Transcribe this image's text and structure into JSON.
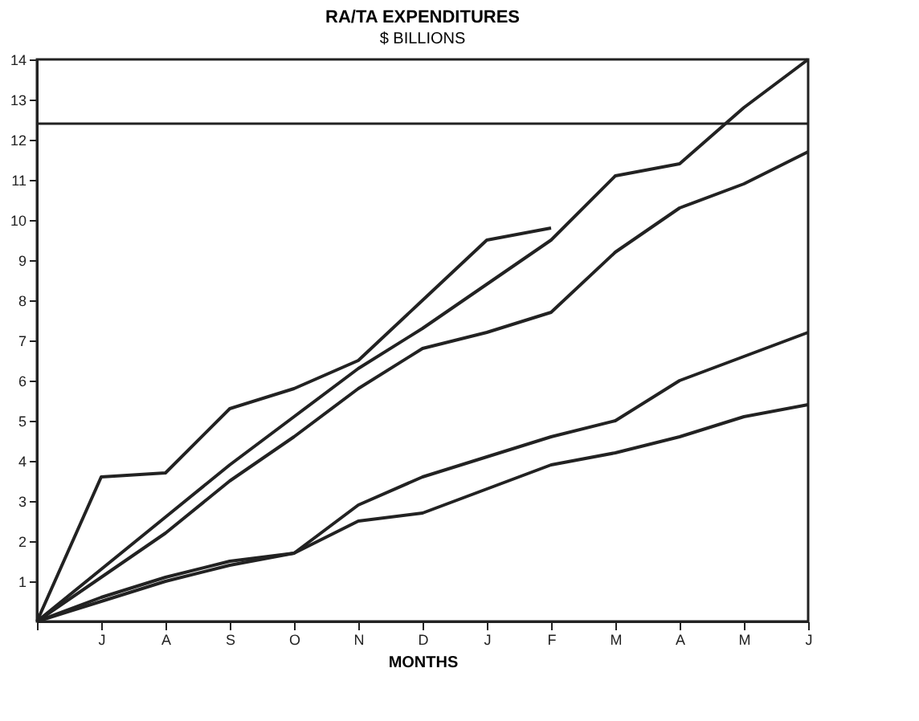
{
  "chart_data": {
    "type": "line",
    "title": "RA/TA EXPENDITURES",
    "ylabel": "$ BILLIONS",
    "xlabel": "MONTHS",
    "categories": [
      null,
      "J",
      "A",
      "S",
      "O",
      "N",
      "D",
      "J",
      "F",
      "M",
      "A",
      "M",
      "J"
    ],
    "ylim": [
      0,
      14
    ],
    "yticks": [
      1,
      2,
      3,
      4,
      5,
      6,
      7,
      8,
      9,
      10,
      11,
      12,
      13,
      14
    ],
    "grid": false,
    "marker": "none",
    "line_style": "solid",
    "ref_lines": [
      {
        "axis": "y",
        "value": 12.4,
        "color": "#222222"
      }
    ],
    "series": [
      {
        "color": "#222222",
        "values": [
          0,
          1.3,
          2.6,
          3.9,
          5.1,
          6.3,
          7.3,
          8.4,
          9.5,
          11.1,
          11.4,
          12.8,
          14.0
        ]
      },
      {
        "color": "#222222",
        "values": [
          0,
          3.6,
          3.7,
          5.3,
          5.8,
          6.5,
          8.0,
          9.5,
          9.8,
          null,
          null,
          null,
          null
        ]
      },
      {
        "color": "#222222",
        "values": [
          0,
          1.1,
          2.2,
          3.5,
          4.6,
          5.8,
          6.8,
          7.2,
          7.7,
          9.2,
          10.3,
          10.9,
          11.7
        ]
      },
      {
        "color": "#222222",
        "values": [
          0,
          0.6,
          1.1,
          1.5,
          1.7,
          2.9,
          3.6,
          4.1,
          4.6,
          5.0,
          6.0,
          6.6,
          7.2
        ]
      },
      {
        "color": "#222222",
        "values": [
          0,
          0.5,
          1.0,
          1.4,
          1.7,
          2.5,
          2.7,
          3.3,
          3.9,
          4.2,
          4.6,
          5.1,
          5.4
        ]
      }
    ]
  }
}
